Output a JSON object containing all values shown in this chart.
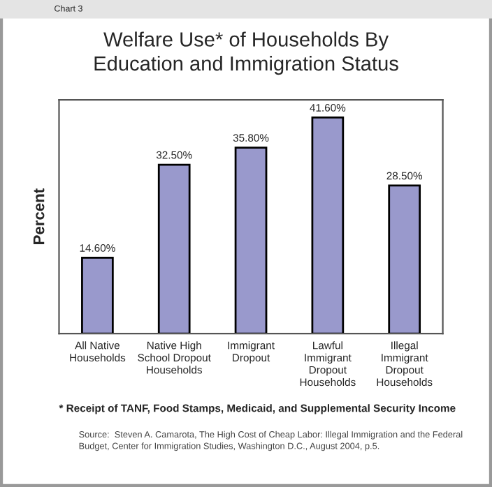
{
  "chart_data": {
    "type": "bar",
    "title": "Welfare Use* of Households By\nEducation and Immigration Status",
    "ylabel": "Percent",
    "categories": [
      "All Native\nHouseholds",
      "Native High\nSchool Dropout\nHouseholds",
      "Immigrant\nDropout",
      "Lawful\nImmigrant\nDropout\nHouseholds",
      "Illegal\nImmigrant\nDropout\nHouseholds"
    ],
    "values": [
      14.6,
      32.5,
      35.8,
      41.6,
      28.5
    ],
    "value_labels": [
      "14.60%",
      "32.50%",
      "35.80%",
      "41.60%",
      "28.50%"
    ],
    "color": "#9999cc",
    "ylim": [
      0,
      45
    ],
    "tick_labels": "x",
    "grid": false,
    "annotations": [
      "Chart 3",
      "* Receipt of TANF, Food Stamps, Medicaid, and Supplemental Security Income",
      "Source:  Steven A. Camarota, The High Cost of Cheap Labor: Illegal Immigration and the Federal\nBudget, Center for Immigration Studies, Washington D.C., August 2004, p.5."
    ]
  }
}
